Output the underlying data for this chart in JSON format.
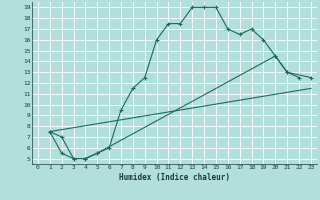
{
  "xlabel": "Humidex (Indice chaleur)",
  "bg_color": "#b2dfdb",
  "grid_color": "#ffffff",
  "line_color": "#1a6b5a",
  "xlim": [
    -0.5,
    23.5
  ],
  "ylim": [
    4.5,
    19.5
  ],
  "xticks": [
    0,
    1,
    2,
    3,
    4,
    5,
    6,
    7,
    8,
    9,
    10,
    11,
    12,
    13,
    14,
    15,
    16,
    17,
    18,
    19,
    20,
    21,
    22,
    23
  ],
  "yticks": [
    5,
    6,
    7,
    8,
    9,
    10,
    11,
    12,
    13,
    14,
    15,
    16,
    17,
    18,
    19
  ],
  "line1_x": [
    1,
    2,
    3,
    4,
    5,
    6,
    7,
    8,
    9,
    10,
    11,
    12,
    13,
    14,
    15,
    16,
    17,
    18,
    19,
    20,
    21,
    22
  ],
  "line1_y": [
    7.5,
    7.0,
    5.0,
    5.0,
    5.5,
    6.0,
    9.5,
    11.5,
    12.5,
    16.0,
    17.5,
    17.5,
    19.0,
    19.0,
    19.0,
    17.0,
    16.5,
    17.0,
    16.0,
    14.5,
    13.0,
    12.5
  ],
  "line2_x": [
    1,
    2,
    3,
    4,
    5,
    20,
    21,
    23
  ],
  "line2_y": [
    7.5,
    5.5,
    5.0,
    5.0,
    5.5,
    14.5,
    13.0,
    12.5
  ],
  "line3_x": [
    1,
    23
  ],
  "line3_y": [
    7.5,
    11.5
  ]
}
